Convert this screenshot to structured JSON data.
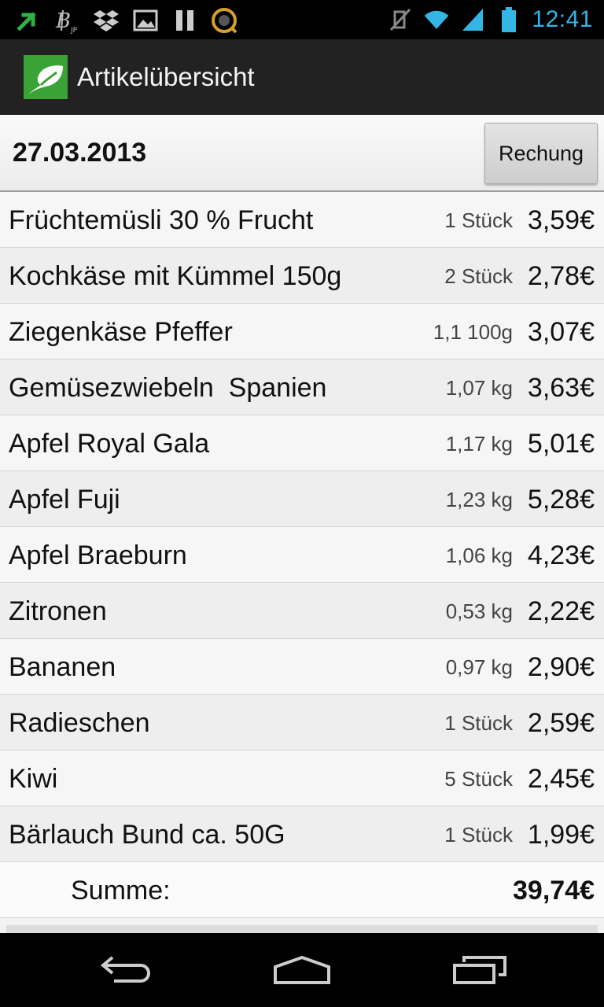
{
  "status_bar": {
    "time": "12:41",
    "icons_left": [
      "arrow-up-right-icon",
      "bitcoin-icon",
      "dropbox-icon",
      "image-icon",
      "pause-icon",
      "scanner-icon"
    ],
    "icons_right": [
      "mute-icon",
      "wifi-icon",
      "signal-icon",
      "battery-icon"
    ],
    "accent_color": "#33b5e5"
  },
  "action_bar": {
    "title": "Artikelübersicht",
    "logo_icon": "leaf-logo-icon",
    "logo_color": "#3aa335"
  },
  "header": {
    "date": "27.03.2013",
    "button_label": "Rechung"
  },
  "items": [
    {
      "name": "Früchtemüsli 30 % Frucht",
      "qty": "1 Stück",
      "price": "3,59€"
    },
    {
      "name": "Kochkäse mit Kümmel 150g",
      "qty": "2 Stück",
      "price": "2,78€"
    },
    {
      "name": "Ziegenkäse Pfeffer",
      "qty": "1,1 100g",
      "price": "3,07€"
    },
    {
      "name": "Gemüsezwiebeln  Spanien",
      "qty": "1,07 kg",
      "price": "3,63€"
    },
    {
      "name": "Apfel Royal Gala",
      "qty": "1,17 kg",
      "price": "5,01€"
    },
    {
      "name": "Apfel Fuji",
      "qty": "1,23 kg",
      "price": "5,28€"
    },
    {
      "name": "Apfel Braeburn",
      "qty": "1,06 kg",
      "price": "4,23€"
    },
    {
      "name": "Zitronen",
      "qty": "0,53 kg",
      "price": "2,22€"
    },
    {
      "name": "Bananen",
      "qty": "0,97 kg",
      "price": "2,90€"
    },
    {
      "name": "Radieschen",
      "qty": "1 Stück",
      "price": "2,59€"
    },
    {
      "name": "Kiwi",
      "qty": "5 Stück",
      "price": "2,45€"
    },
    {
      "name": "Bärlauch Bund ca. 50G",
      "qty": "1 Stück",
      "price": "1,99€"
    }
  ],
  "summary": {
    "label": "Summe:",
    "total": "39,74€"
  },
  "nav_bar": {
    "buttons": [
      "back-icon",
      "home-icon",
      "recent-apps-icon"
    ]
  }
}
